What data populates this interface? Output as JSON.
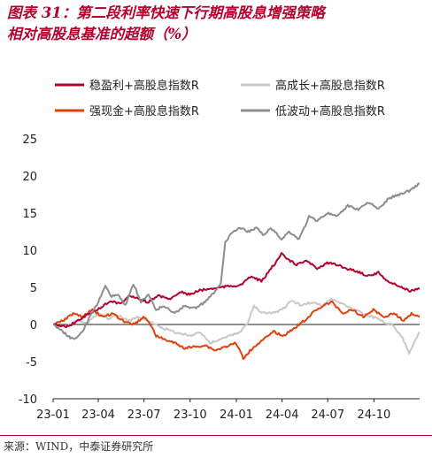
{
  "title_lines": [
    "图表 31：第二段利率快速下行期高股息增强策略",
    "相对高股息基准的超额（%）"
  ],
  "source": "来源：WIND，中泰证券研究所",
  "chart_data": {
    "type": "line",
    "ylim": [
      -10,
      25
    ],
    "yticks": [
      "25",
      "20",
      "15",
      "10",
      "5",
      "0",
      "-5",
      "-10"
    ],
    "xlim": [
      "2023-01-01",
      "2024-12-31"
    ],
    "xticks": [
      {
        "label": "23-01",
        "date": "2023-01-01"
      },
      {
        "label": "23-04",
        "date": "2023-04-01"
      },
      {
        "label": "23-07",
        "date": "2023-07-01"
      },
      {
        "label": "23-10",
        "date": "2023-10-01"
      },
      {
        "label": "24-01",
        "date": "2024-01-01"
      },
      {
        "label": "24-04",
        "date": "2024-04-01"
      },
      {
        "label": "24-07",
        "date": "2024-07-01"
      },
      {
        "label": "24-10",
        "date": "2024-10-01"
      }
    ],
    "legend_position": "top",
    "series": [
      {
        "name": "稳盈利+高股息指数R",
        "color": "#b4002d",
        "points": [
          [
            "2023-01-03",
            0
          ],
          [
            "2023-02-01",
            -0.3
          ],
          [
            "2023-02-20",
            0.6
          ],
          [
            "2023-03-15",
            1.5
          ],
          [
            "2023-04-05",
            2.2
          ],
          [
            "2023-04-25",
            3.2
          ],
          [
            "2023-05-15",
            2.8
          ],
          [
            "2023-06-01",
            3.8
          ],
          [
            "2023-06-20",
            3.5
          ],
          [
            "2023-07-10",
            3.0
          ],
          [
            "2023-07-31",
            3.9
          ],
          [
            "2023-08-20",
            3.4
          ],
          [
            "2023-09-10",
            4.4
          ],
          [
            "2023-09-30",
            4.0
          ],
          [
            "2023-10-20",
            4.6
          ],
          [
            "2023-11-10",
            4.8
          ],
          [
            "2023-11-30",
            5.0
          ],
          [
            "2023-12-20",
            5.2
          ],
          [
            "2024-01-10",
            5.3
          ],
          [
            "2024-01-31",
            6.5
          ],
          [
            "2024-02-20",
            5.8
          ],
          [
            "2024-03-10",
            7.5
          ],
          [
            "2024-03-31",
            9.5
          ],
          [
            "2024-04-15",
            8.6
          ],
          [
            "2024-04-30",
            8.1
          ],
          [
            "2024-05-20",
            8.5
          ],
          [
            "2024-06-10",
            7.6
          ],
          [
            "2024-06-30",
            8.3
          ],
          [
            "2024-07-20",
            8.0
          ],
          [
            "2024-08-10",
            7.5
          ],
          [
            "2024-08-31",
            7.1
          ],
          [
            "2024-09-20",
            6.5
          ],
          [
            "2024-10-10",
            7.0
          ],
          [
            "2024-10-31",
            5.7
          ],
          [
            "2024-11-20",
            5.2
          ],
          [
            "2024-12-10",
            4.5
          ],
          [
            "2024-12-31",
            4.8
          ]
        ]
      },
      {
        "name": "高成长+高股息指数R",
        "color": "#c8c8c8",
        "points": [
          [
            "2023-01-03",
            0
          ],
          [
            "2023-01-25",
            -0.3
          ],
          [
            "2023-02-15",
            0.5
          ],
          [
            "2023-03-10",
            0.2
          ],
          [
            "2023-04-01",
            1.5
          ],
          [
            "2023-04-20",
            0.8
          ],
          [
            "2023-05-10",
            1.2
          ],
          [
            "2023-05-31",
            0.5
          ],
          [
            "2023-06-20",
            1.0
          ],
          [
            "2023-07-10",
            0.4
          ],
          [
            "2023-07-31",
            -0.2
          ],
          [
            "2023-08-20",
            -0.8
          ],
          [
            "2023-09-10",
            -1.2
          ],
          [
            "2023-10-01",
            -1.5
          ],
          [
            "2023-10-20",
            -1.0
          ],
          [
            "2023-11-10",
            -2.5
          ],
          [
            "2023-12-01",
            -2.0
          ],
          [
            "2023-12-20",
            -1.5
          ],
          [
            "2024-01-10",
            -1.0
          ],
          [
            "2024-01-25",
            0.5
          ],
          [
            "2024-02-05",
            2.5
          ],
          [
            "2024-02-15",
            1.8
          ],
          [
            "2024-03-10",
            1.5
          ],
          [
            "2024-04-01",
            2.0
          ],
          [
            "2024-04-20",
            3.2
          ],
          [
            "2024-05-10",
            2.6
          ],
          [
            "2024-05-31",
            3.0
          ],
          [
            "2024-06-20",
            2.5
          ],
          [
            "2024-07-10",
            3.5
          ],
          [
            "2024-07-31",
            2.8
          ],
          [
            "2024-08-20",
            2.0
          ],
          [
            "2024-09-10",
            1.5
          ],
          [
            "2024-09-30",
            1.0
          ],
          [
            "2024-10-15",
            0.5
          ],
          [
            "2024-11-05",
            0
          ],
          [
            "2024-11-25",
            -1.5
          ],
          [
            "2024-12-10",
            -3.8
          ],
          [
            "2024-12-31",
            -1.0
          ]
        ]
      },
      {
        "name": "强现金+高股息指数R",
        "color": "#e0400b",
        "points": [
          [
            "2023-01-03",
            0
          ],
          [
            "2023-01-20",
            0.5
          ],
          [
            "2023-02-10",
            1.5
          ],
          [
            "2023-03-01",
            1.0
          ],
          [
            "2023-03-20",
            2.0
          ],
          [
            "2023-04-10",
            1.0
          ],
          [
            "2023-04-30",
            1.5
          ],
          [
            "2023-05-20",
            0.5
          ],
          [
            "2023-06-10",
            0
          ],
          [
            "2023-06-30",
            1.0
          ],
          [
            "2023-07-10",
            0.5
          ],
          [
            "2023-07-25",
            -1.5
          ],
          [
            "2023-08-10",
            -2.0
          ],
          [
            "2023-08-31",
            -2.5
          ],
          [
            "2023-09-20",
            -3.2
          ],
          [
            "2023-10-10",
            -3.0
          ],
          [
            "2023-10-31",
            -2.8
          ],
          [
            "2023-11-20",
            -3.5
          ],
          [
            "2023-12-10",
            -3.0
          ],
          [
            "2023-12-31",
            -2.5
          ],
          [
            "2024-01-15",
            -4.5
          ],
          [
            "2024-02-05",
            -3.0
          ],
          [
            "2024-02-25",
            -2.0
          ],
          [
            "2024-03-15",
            -1.0
          ],
          [
            "2024-04-05",
            -1.5
          ],
          [
            "2024-04-25",
            -0.5
          ],
          [
            "2024-05-15",
            0.5
          ],
          [
            "2024-05-31",
            1.5
          ],
          [
            "2024-06-20",
            2.5
          ],
          [
            "2024-07-10",
            3.0
          ],
          [
            "2024-07-31",
            1.5
          ],
          [
            "2024-08-20",
            2.0
          ],
          [
            "2024-09-10",
            1.0
          ],
          [
            "2024-09-30",
            2.0
          ],
          [
            "2024-10-20",
            1.0
          ],
          [
            "2024-11-10",
            1.5
          ],
          [
            "2024-11-30",
            0.5
          ],
          [
            "2024-12-15",
            1.5
          ],
          [
            "2024-12-31",
            1.0
          ]
        ]
      },
      {
        "name": "低波动+高股息指数R",
        "color": "#8c8c8c",
        "points": [
          [
            "2023-01-03",
            0
          ],
          [
            "2023-01-20",
            -1.0
          ],
          [
            "2023-02-10",
            -2.0
          ],
          [
            "2023-02-28",
            -1.0
          ],
          [
            "2023-03-15",
            1.0
          ],
          [
            "2023-04-01",
            3.0
          ],
          [
            "2023-04-15",
            5.3
          ],
          [
            "2023-04-25",
            3.8
          ],
          [
            "2023-05-10",
            4.0
          ],
          [
            "2023-05-25",
            2.5
          ],
          [
            "2023-06-10",
            5.5
          ],
          [
            "2023-06-25",
            3.0
          ],
          [
            "2023-07-10",
            4.0
          ],
          [
            "2023-07-25",
            2.0
          ],
          [
            "2023-08-10",
            2.5
          ],
          [
            "2023-08-31",
            1.5
          ],
          [
            "2023-09-20",
            2.5
          ],
          [
            "2023-10-10",
            2.2
          ],
          [
            "2023-10-31",
            3.0
          ],
          [
            "2023-11-20",
            4.5
          ],
          [
            "2023-12-01",
            5.5
          ],
          [
            "2023-12-10",
            11.0
          ],
          [
            "2023-12-25",
            12.5
          ],
          [
            "2024-01-10",
            13.0
          ],
          [
            "2024-01-25",
            12.5
          ],
          [
            "2024-02-10",
            13.0
          ],
          [
            "2024-02-25",
            12.0
          ],
          [
            "2024-03-10",
            13.0
          ],
          [
            "2024-03-31",
            11.5
          ],
          [
            "2024-04-15",
            12.5
          ],
          [
            "2024-05-05",
            11.5
          ],
          [
            "2024-05-25",
            14.5
          ],
          [
            "2024-06-10",
            14.0
          ],
          [
            "2024-06-30",
            15.0
          ],
          [
            "2024-07-20",
            14.5
          ],
          [
            "2024-08-10",
            16.0
          ],
          [
            "2024-08-31",
            15.5
          ],
          [
            "2024-09-20",
            16.5
          ],
          [
            "2024-10-10",
            15.5
          ],
          [
            "2024-10-31",
            17.0
          ],
          [
            "2024-11-20",
            17.5
          ],
          [
            "2024-12-10",
            18.0
          ],
          [
            "2024-12-31",
            19.0
          ]
        ]
      }
    ]
  }
}
